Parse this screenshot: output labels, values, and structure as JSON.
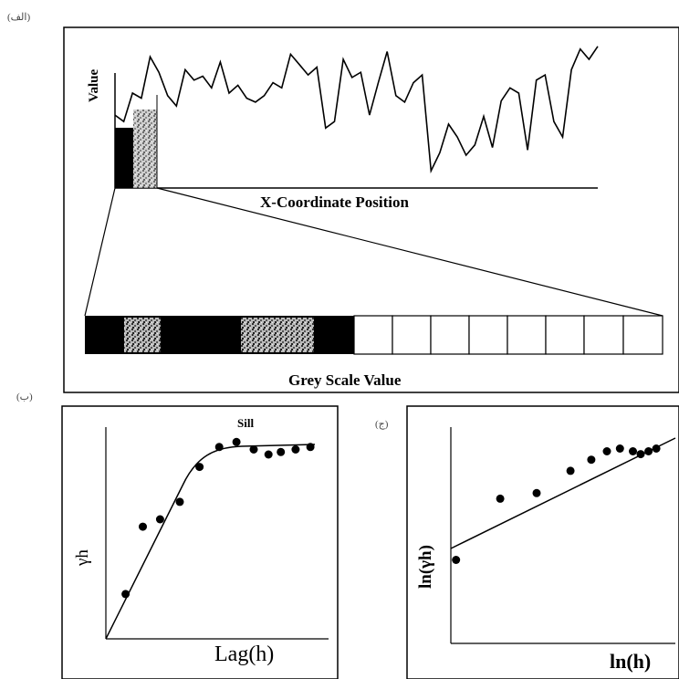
{
  "panel_a": {
    "letter": "(الف)",
    "y_label": "Value",
    "x_label": "X-Coordinate Position",
    "strip_label": "Grey Scale Value",
    "profile": [
      [
        0,
        0.45
      ],
      [
        2,
        0.4
      ],
      [
        4,
        0.62
      ],
      [
        6,
        0.58
      ],
      [
        8,
        0.9
      ],
      [
        10,
        0.78
      ],
      [
        12,
        0.6
      ],
      [
        14,
        0.52
      ],
      [
        16,
        0.8
      ],
      [
        18,
        0.72
      ],
      [
        20,
        0.75
      ],
      [
        22,
        0.66
      ],
      [
        24,
        0.86
      ],
      [
        26,
        0.62
      ],
      [
        28,
        0.68
      ],
      [
        30,
        0.58
      ],
      [
        32,
        0.55
      ],
      [
        34,
        0.6
      ],
      [
        36,
        0.7
      ],
      [
        38,
        0.66
      ],
      [
        40,
        0.92
      ],
      [
        42,
        0.84
      ],
      [
        44,
        0.76
      ],
      [
        46,
        0.82
      ],
      [
        48,
        0.35
      ],
      [
        50,
        0.4
      ],
      [
        52,
        0.88
      ],
      [
        54,
        0.74
      ],
      [
        56,
        0.78
      ],
      [
        58,
        0.45
      ],
      [
        60,
        0.7
      ],
      [
        62,
        0.94
      ],
      [
        64,
        0.6
      ],
      [
        66,
        0.55
      ],
      [
        68,
        0.7
      ],
      [
        70,
        0.76
      ],
      [
        72,
        0.02
      ],
      [
        74,
        0.16
      ],
      [
        76,
        0.38
      ],
      [
        78,
        0.28
      ],
      [
        80,
        0.14
      ],
      [
        82,
        0.22
      ],
      [
        84,
        0.44
      ],
      [
        86,
        0.2
      ],
      [
        88,
        0.56
      ],
      [
        90,
        0.66
      ],
      [
        92,
        0.62
      ],
      [
        94,
        0.18
      ],
      [
        96,
        0.72
      ],
      [
        98,
        0.76
      ],
      [
        100,
        0.4
      ],
      [
        102,
        0.28
      ],
      [
        104,
        0.8
      ],
      [
        106,
        0.96
      ],
      [
        108,
        0.88
      ],
      [
        110,
        0.98
      ]
    ]
  },
  "panel_b": {
    "letter": "(ب)",
    "y_label": "γh",
    "x_label": "Lag(h)",
    "annotation": "Sill",
    "points": [
      [
        0.8,
        1.8
      ],
      [
        1.5,
        4.5
      ],
      [
        2.2,
        4.8
      ],
      [
        3.0,
        5.5
      ],
      [
        3.8,
        6.9
      ],
      [
        4.6,
        7.7
      ],
      [
        5.3,
        7.9
      ],
      [
        6.0,
        7.6
      ],
      [
        6.6,
        7.4
      ],
      [
        7.1,
        7.5
      ],
      [
        7.7,
        7.6
      ],
      [
        8.3,
        7.7
      ]
    ]
  },
  "panel_c": {
    "letter": "(ج)",
    "y_label": "ln(γh)",
    "x_label": "ln(h)",
    "points": [
      [
        0.2,
        3.0
      ],
      [
        1.9,
        5.2
      ],
      [
        3.3,
        5.4
      ],
      [
        4.6,
        6.2
      ],
      [
        5.4,
        6.6
      ],
      [
        6.0,
        6.9
      ],
      [
        6.5,
        7.0
      ],
      [
        7.0,
        6.9
      ],
      [
        7.3,
        6.8
      ],
      [
        7.6,
        6.9
      ],
      [
        7.9,
        7.0
      ]
    ]
  }
}
